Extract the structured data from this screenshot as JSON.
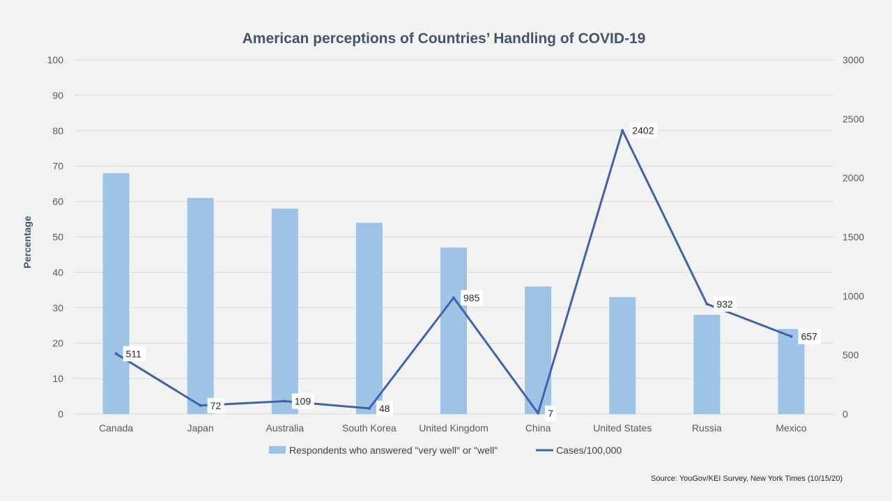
{
  "chart_data": {
    "type": "bar",
    "title": "American perceptions of Countries’ Handling of COVID-19",
    "ylabel": "Percentage",
    "y2label": "",
    "ylim": [
      0,
      100
    ],
    "y2lim": [
      0,
      3000
    ],
    "yticks": [
      "0",
      "10",
      "20",
      "30",
      "40",
      "50",
      "60",
      "70",
      "80",
      "90",
      "100"
    ],
    "y2ticks": [
      "0",
      "500",
      "1000",
      "1500",
      "2000",
      "2500",
      "3000"
    ],
    "grid": true,
    "legend_position": "bottom",
    "categories": [
      "Canada",
      "Japan",
      "Australia",
      "South Korea",
      "United Kingdom",
      "China",
      "United States",
      "Russia",
      "Mexico"
    ],
    "series": [
      {
        "name": "Respondents who answered \"very well\" or \"well\"",
        "type": "bar",
        "axis": "left",
        "color": "#9dc3e6",
        "values": [
          68,
          61,
          58,
          54,
          47,
          36,
          33,
          28,
          24
        ]
      },
      {
        "name": "Cases/100,000",
        "type": "line",
        "axis": "right",
        "color": "#3f62a8",
        "values": [
          511,
          72,
          109,
          48,
          985,
          7,
          2402,
          932,
          657
        ]
      }
    ],
    "source": "Source: YouGov/KEI Survey, New York Times (10/15/20)"
  }
}
